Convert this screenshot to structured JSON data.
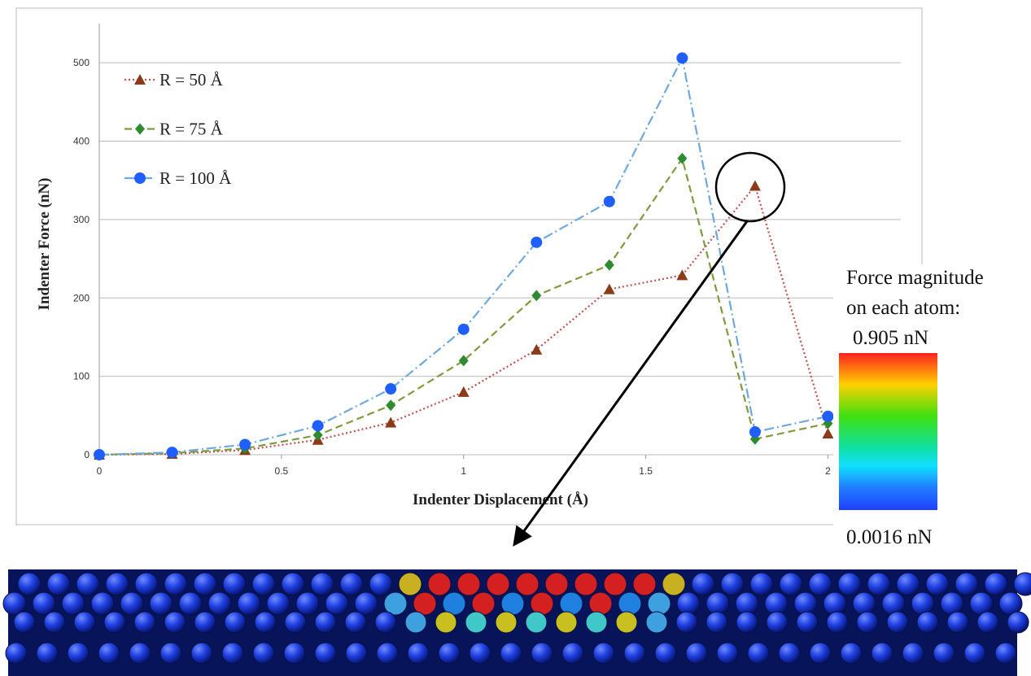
{
  "chart_data": {
    "type": "line",
    "x_label": "Indenter Displacement (Å)",
    "y_label": "Indenter Force (nN)",
    "x": [
      0,
      0.2,
      0.4,
      0.6,
      0.8,
      1.0,
      1.2,
      1.4,
      1.6,
      1.8,
      2.0
    ],
    "series": [
      {
        "name": "R = 50 Å",
        "color": "#8b3a1a",
        "line_color": "#c0504d",
        "line_style": "dotted",
        "marker": "triangle",
        "values": [
          0,
          1,
          6,
          19,
          41,
          80,
          134,
          211,
          229,
          343,
          27
        ]
      },
      {
        "name": "R = 75 Å",
        "color": "#2e8b2e",
        "line_color": "#7f9a3f",
        "line_style": "dashed",
        "marker": "diamond",
        "values": [
          0,
          2,
          8,
          25,
          63,
          120,
          203,
          242,
          378,
          20,
          40
        ]
      },
      {
        "name": "R = 100 Å",
        "color": "#1f5fff",
        "line_color": "#6fa8dc",
        "line_style": "dashdot",
        "marker": "circle",
        "values": [
          0,
          3,
          13,
          37,
          84,
          160,
          271,
          323,
          506,
          29,
          49
        ]
      }
    ],
    "xlim": [
      0,
      2.2
    ],
    "xticks": [
      0,
      0.5,
      1,
      1.5,
      2
    ],
    "ylim": [
      0,
      550
    ],
    "yticks": [
      0,
      100,
      200,
      300,
      400,
      500
    ],
    "grid": true,
    "legend": "upper-left",
    "colorbar": {
      "title": [
        "Force magnitude",
        "on each atom:"
      ],
      "max_label": "0.905 nN",
      "min_label": "0.0016 nN"
    }
  }
}
